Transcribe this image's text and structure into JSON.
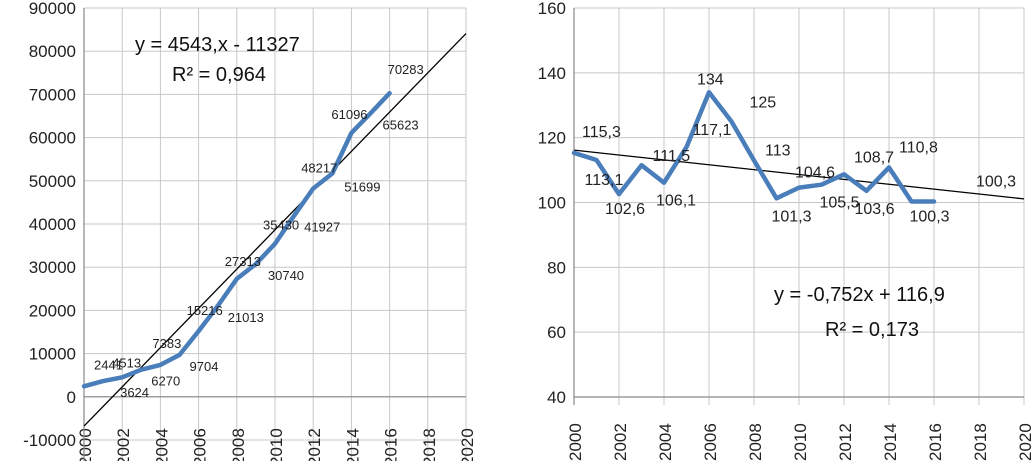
{
  "colors": {
    "series": "#4a7ebb",
    "trend": "#000000",
    "grid": "#c8c8c8",
    "axis": "#888888"
  },
  "chart_data": [
    {
      "type": "line",
      "ylim": [
        -10000,
        90000
      ],
      "xlim": [
        2000,
        2020
      ],
      "yticks": [
        "90000",
        "80000",
        "70000",
        "60000",
        "50000",
        "40000",
        "30000",
        "20000",
        "10000",
        "0",
        "-10000"
      ],
      "xticks": [
        "2000",
        "2002",
        "2004",
        "2006",
        "2008",
        "2010",
        "2012",
        "2014",
        "2016",
        "2018",
        "2020"
      ],
      "series": [
        {
          "x": [
            2000,
            2001,
            2002,
            2003,
            2004,
            2005,
            2006,
            2007,
            2008,
            2009,
            2010,
            2011,
            2012,
            2013,
            2014,
            2015,
            2016
          ],
          "values": [
            2441,
            3624,
            4513,
            6270,
            7383,
            9704,
            15216,
            21013,
            27313,
            30740,
            35430,
            41927,
            48217,
            51699,
            61096,
            65623,
            70283
          ],
          "labels": [
            "2441",
            "3624",
            "4513",
            "6270",
            "7383",
            "9704",
            "15216",
            "21013",
            "27313",
            "30740",
            "35430",
            "41927",
            "48217",
            "51699",
            "61096",
            "65623",
            "70283"
          ]
        }
      ],
      "trendline": {
        "slope": 4543,
        "intercept": -11327,
        "index_start": 1
      },
      "equation": "y = 4543,x - 11327",
      "r2": "R² = 0,964",
      "grid": true
    },
    {
      "type": "line",
      "ylim": [
        40,
        160
      ],
      "xlim": [
        2000,
        2020
      ],
      "yticks": [
        "160",
        "140",
        "120",
        "100",
        "80",
        "60",
        "40"
      ],
      "xticks": [
        "2000",
        "2002",
        "2004",
        "2006",
        "2008",
        "2010",
        "2012",
        "2014",
        "2016",
        "2018",
        "2020"
      ],
      "series": [
        {
          "x": [
            2000,
            2001,
            2002,
            2003,
            2004,
            2005,
            2006,
            2007,
            2008,
            2009,
            2010,
            2011,
            2012,
            2013,
            2014,
            2015,
            2016
          ],
          "values": [
            115.3,
            113.1,
            102.6,
            111.5,
            106.1,
            117.1,
            134,
            125,
            113,
            101.3,
            104.6,
            105.5,
            108.7,
            103.6,
            110.8,
            100.3,
            100.3
          ],
          "labels": [
            "115,3",
            "113,1",
            "102,6",
            "111,5",
            "106,1",
            "117,1",
            "134",
            "125",
            "113",
            "101,3",
            "104,6",
            "105,5",
            "108,7",
            "103,6",
            "110,8",
            "100,3",
            "100,3"
          ]
        }
      ],
      "trendline": {
        "slope": -0.752,
        "intercept": 116.9,
        "index_start": 1
      },
      "equation": "y = -0,752x + 116,9",
      "r2": "R² = 0,173",
      "grid": true
    }
  ]
}
